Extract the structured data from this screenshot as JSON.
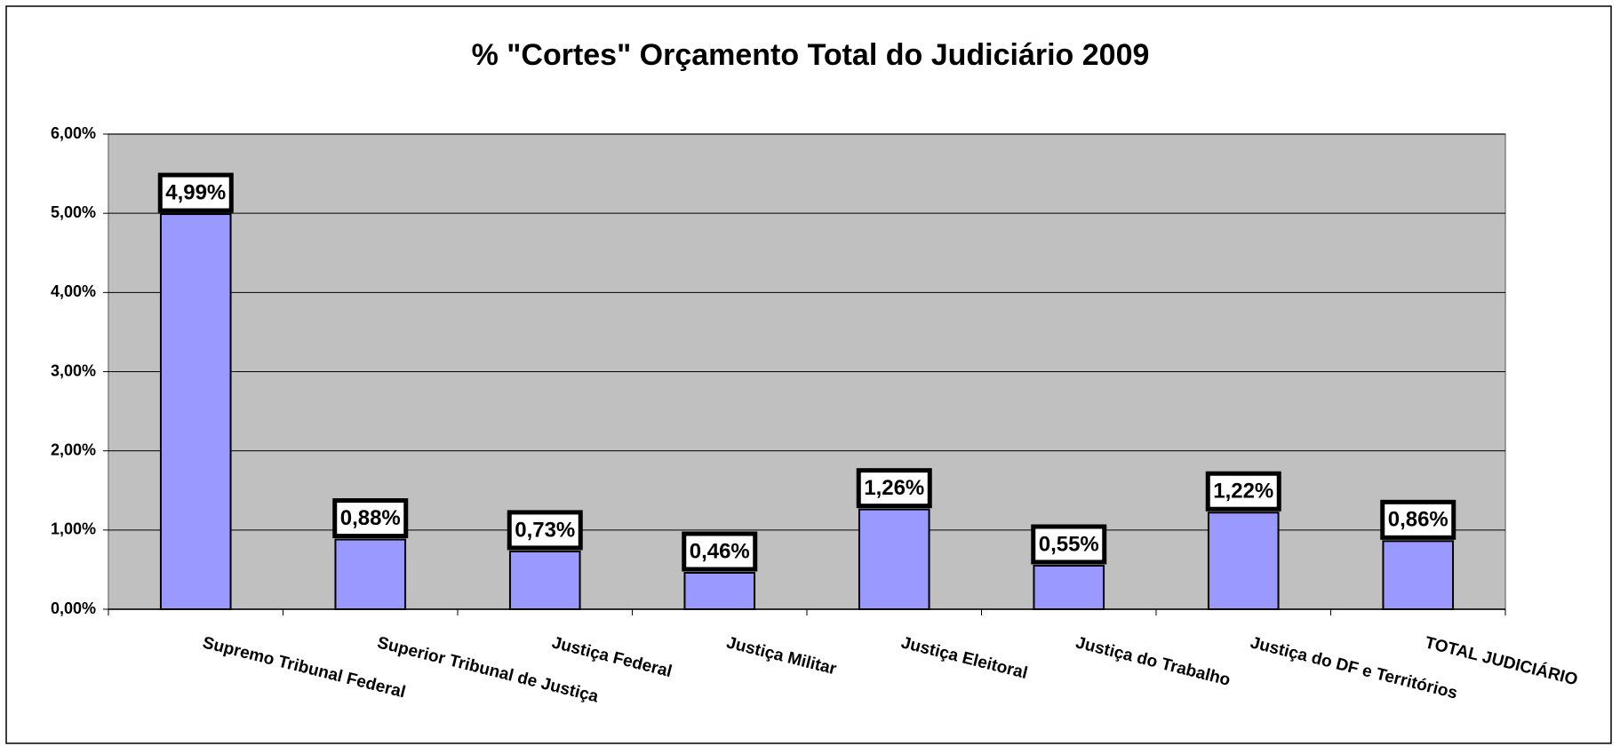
{
  "chart_data": {
    "type": "bar",
    "title": "% \"Cortes\" Orçamento Total do Judiciário 2009",
    "categories": [
      "Supremo Tribunal Federal",
      "Superior Tribunal de Justiça",
      "Justiça Federal",
      "Justiça Militar",
      "Justiça Eleitoral",
      "Justiça do Trabalho",
      "Justiça do DF e Territórios",
      "TOTAL JUDICIÁRIO"
    ],
    "values": [
      4.99,
      0.88,
      0.73,
      0.46,
      1.26,
      0.55,
      1.22,
      0.86
    ],
    "value_labels": [
      "4,99%",
      "0,88%",
      "0,73%",
      "0,46%",
      "1,26%",
      "0,55%",
      "1,22%",
      "0,86%"
    ],
    "color": "#9999ff",
    "ylim": [
      0,
      6
    ],
    "yticks": [
      {
        "value": 0,
        "label": "0,00%"
      },
      {
        "value": 1,
        "label": "1,00%"
      },
      {
        "value": 2,
        "label": "2,00%"
      },
      {
        "value": 3,
        "label": "3,00%"
      },
      {
        "value": 4,
        "label": "4,00%"
      },
      {
        "value": 5,
        "label": "5,00%"
      },
      {
        "value": 6,
        "label": "6,00%"
      }
    ],
    "grid": true
  }
}
